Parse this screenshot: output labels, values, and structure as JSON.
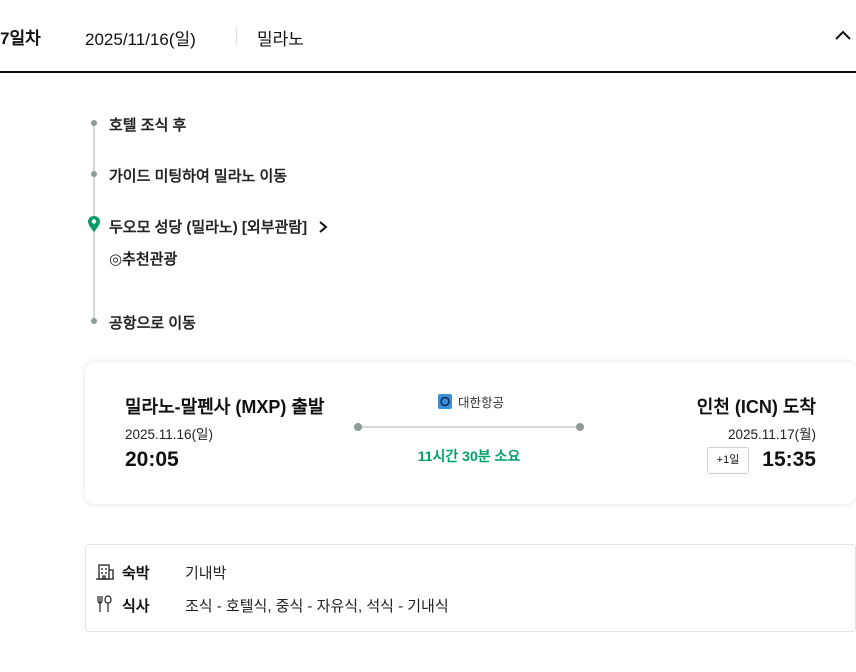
{
  "header": {
    "day": "7일차",
    "date": "2025/11/16(일)",
    "city": "밀라노",
    "toggle_icon": "chevron-up-icon"
  },
  "timeline": [
    {
      "text": "호텔 조식 후",
      "type": "dot"
    },
    {
      "text": "가이드 미팅하여 밀라노 이동",
      "type": "dot"
    },
    {
      "text": "두오모 성당 (밀라노) [외부관람]",
      "type": "pin",
      "sub": "◎추천관광"
    },
    {
      "text": "공항으로 이동",
      "type": "dot"
    }
  ],
  "flight": {
    "departure": {
      "title": "밀라노-말펜사 (MXP) 출발",
      "date": "2025.11.16(일)",
      "time": "20:05"
    },
    "airline": "대한항공",
    "duration": "11시간 30분 소요",
    "arrival": {
      "title": "인천 (ICN) 도착",
      "date": "2025.11.17(월)",
      "day_offset": "+1일",
      "time": "15:35"
    }
  },
  "info": {
    "lodging_label": "숙박",
    "lodging": "기내박",
    "meal_label": "식사",
    "meals": "조식 - 호텔식, 중식 - 자유식, 석식 - 기내식"
  },
  "colors": {
    "accent": "#00a06a",
    "pin": "#0a9a6a",
    "airline_logo": "#3a8fd9"
  }
}
